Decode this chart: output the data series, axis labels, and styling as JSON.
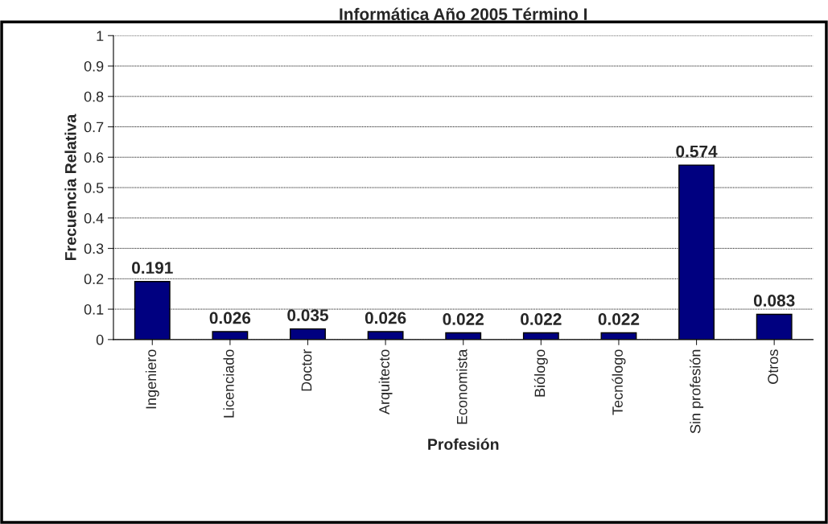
{
  "chart_data": {
    "type": "bar",
    "title": "Informática Año 2005 Término I",
    "xlabel": "Profesión",
    "ylabel": "Frecuencia Relativa",
    "categories": [
      "Ingeniero",
      "Licenciado",
      "Doctor",
      "Arquitecto",
      "Economista",
      "Biólogo",
      "Tecnólogo",
      "Sin profesión",
      "Otros"
    ],
    "values": [
      0.191,
      0.026,
      0.035,
      0.026,
      0.022,
      0.022,
      0.022,
      0.574,
      0.083
    ],
    "color": "#000080",
    "ylim": [
      0,
      1
    ],
    "yticks": [
      0,
      0.1,
      0.2,
      0.3,
      0.4,
      0.5,
      0.6,
      0.7,
      0.8,
      0.9,
      1
    ],
    "grid": "y",
    "data_labels": true,
    "legend": false
  }
}
